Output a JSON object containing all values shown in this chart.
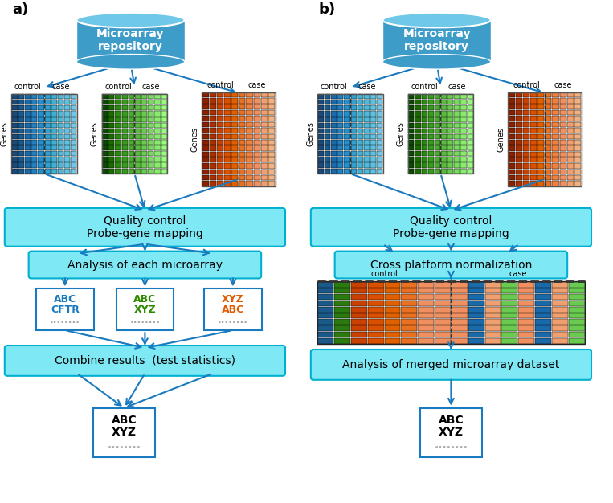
{
  "background_color": "#ffffff",
  "arrow_color": "#1a7abf",
  "box_fill_color": "#7fe8f5",
  "box_edge_color": "#00b0d0",
  "cylinder_text": "Microarray\nrepository",
  "panel_a_label": "a)",
  "panel_b_label": "b)",
  "qc_text": "Quality control\nProbe-gene mapping",
  "analysis_each_text": "Analysis of each microarray",
  "cross_platform_text": "Cross platform normalization",
  "combine_text": "Combine results  (test statistics)",
  "analysis_merged_text": "Analysis of merged microarray dataset",
  "blue_cols": [
    "#1a4a7a",
    "#1a5a8a",
    "#1a6aaa",
    "#2280c0",
    "#2290d0",
    "#30a0d0",
    "#40b0d0",
    "#50b8d8",
    "#60c0e0",
    "#70c8e8"
  ],
  "green_cols": [
    "#0a4a00",
    "#1a6a00",
    "#2a8a10",
    "#3a9a20",
    "#4aaa30",
    "#5aba40",
    "#6aca50",
    "#7ada60",
    "#8aea70",
    "#9afa80"
  ],
  "orange_cols": [
    "#8a2000",
    "#aa3000",
    "#ca4000",
    "#da5000",
    "#e06000",
    "#e87020",
    "#f08040",
    "#f09060",
    "#f0a070",
    "#f0b080"
  ],
  "ctrl_colors_merged": [
    "#1a5a8a",
    "#2a7a10",
    "#ca4000",
    "#da5000",
    "#e06000",
    "#e87020",
    "#f09060",
    "#f09060"
  ],
  "case_colors_merged": [
    "#f09060",
    "#1a6aaa",
    "#f0a070",
    "#6aca50",
    "#f09060",
    "#1a6aaa",
    "#f0a070",
    "#6aca50"
  ],
  "box1_lines": [
    "ABC",
    "CFTR",
    "........"
  ],
  "box1_colors": [
    "#1a7abf",
    "#1a7abf",
    "#aaaaaa"
  ],
  "box2_lines": [
    "ABC",
    "XYZ",
    "........"
  ],
  "box2_colors": [
    "#2e8b00",
    "#2e8b00",
    "#aaaaaa"
  ],
  "box3_lines": [
    "XYZ",
    "ABC",
    "........"
  ],
  "box3_colors": [
    "#e05a00",
    "#e05a00",
    "#aaaaaa"
  ],
  "final_box_lines": [
    "ABC",
    "XYZ",
    "........"
  ],
  "final_box_colors": [
    "#000000",
    "#000000",
    "#aaaaaa"
  ]
}
